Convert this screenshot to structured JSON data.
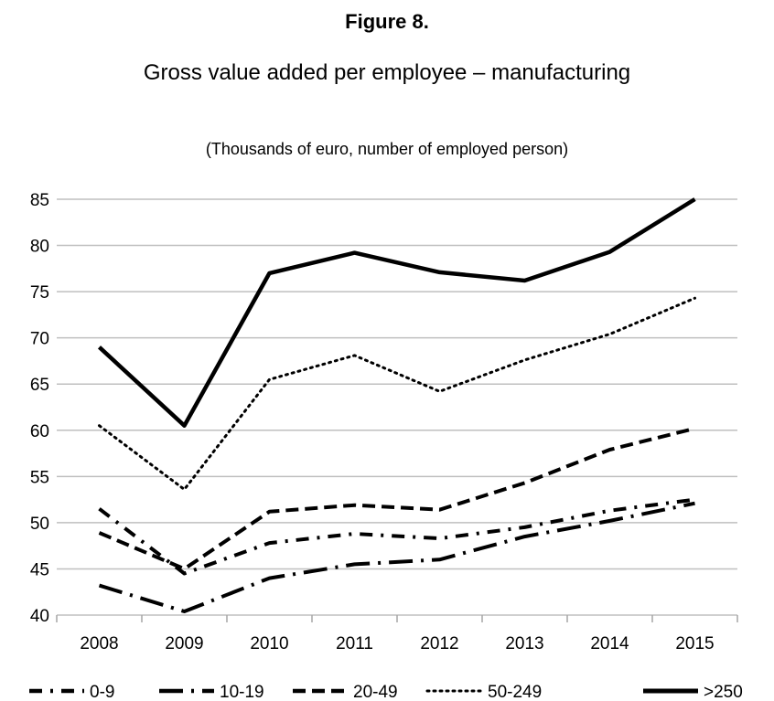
{
  "figure": {
    "label": "Figure 8.",
    "title": "Gross value added per employee – manufacturing"
  },
  "chart_data": {
    "type": "line",
    "subtitle": "(Thousands of euro, number of employed person)",
    "xlabel": "",
    "ylabel": "",
    "categories": [
      "2008",
      "2009",
      "2010",
      "2011",
      "2012",
      "2013",
      "2014",
      "2015"
    ],
    "ylim": [
      40,
      85
    ],
    "yticks": [
      40,
      45,
      50,
      55,
      60,
      65,
      70,
      75,
      80,
      85
    ],
    "grid": "horizontal",
    "legend": "bottom",
    "color": "#000000",
    "series": [
      {
        "name": "0-9",
        "style": "dash-dot",
        "values": [
          51.5,
          44.5,
          47.8,
          48.8,
          48.3,
          49.5,
          51.3,
          52.5
        ]
      },
      {
        "name": "10-19",
        "style": "long-dash-dot",
        "values": [
          43.2,
          40.4,
          44.0,
          45.5,
          46.0,
          48.5,
          50.2,
          52.1
        ]
      },
      {
        "name": "20-49",
        "style": "dashed",
        "values": [
          48.9,
          45.0,
          51.2,
          51.9,
          51.4,
          54.3,
          57.9,
          60.2
        ]
      },
      {
        "name": "50-249",
        "style": "dotted",
        "values": [
          60.5,
          53.6,
          65.5,
          68.1,
          64.2,
          67.6,
          70.4,
          74.3
        ]
      },
      {
        "name": ">250",
        "style": "solid",
        "values": [
          69.0,
          60.5,
          77.0,
          79.2,
          77.1,
          76.2,
          79.3,
          85.0
        ]
      }
    ]
  }
}
